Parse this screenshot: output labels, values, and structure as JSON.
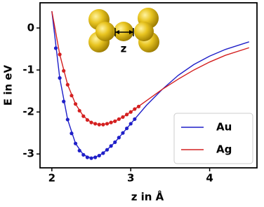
{
  "chart_data": {
    "type": "line",
    "xlabel": "z in Å",
    "ylabel": "E in eV",
    "inset_label": "z",
    "xlim": [
      1.85,
      4.6
    ],
    "ylim": [
      -3.33,
      0.6
    ],
    "xticks": [
      2,
      3,
      4
    ],
    "yticks": [
      0,
      -1,
      -2,
      -3
    ],
    "legend": "lower right",
    "series": [
      {
        "name": "Au",
        "color": "#1f1fc8",
        "x": [
          2.0,
          2.1,
          2.2,
          2.3,
          2.4,
          2.5,
          2.6,
          2.7,
          2.8,
          2.9,
          3.0,
          3.2,
          3.4,
          3.6,
          3.8,
          4.0,
          4.2,
          4.5
        ],
        "values": [
          0.4,
          -1.19,
          -2.18,
          -2.75,
          -3.02,
          -3.1,
          -3.04,
          -2.9,
          -2.72,
          -2.5,
          -2.28,
          -1.84,
          -1.46,
          -1.13,
          -0.87,
          -0.67,
          -0.51,
          -0.33
        ],
        "points_x": [
          2.05,
          2.1,
          2.15,
          2.2,
          2.25,
          2.3,
          2.35,
          2.4,
          2.45,
          2.5,
          2.55,
          2.6,
          2.65,
          2.7,
          2.75,
          2.8,
          2.85,
          2.9,
          2.95,
          3.0,
          3.05
        ],
        "points_values": [
          -0.48,
          -1.19,
          -1.75,
          -2.18,
          -2.51,
          -2.75,
          -2.92,
          -3.02,
          -3.08,
          -3.1,
          -3.08,
          -3.04,
          -2.98,
          -2.9,
          -2.81,
          -2.72,
          -2.61,
          -2.5,
          -2.39,
          -2.28,
          -2.17
        ]
      },
      {
        "name": "Ag",
        "color": "#d42020",
        "x": [
          2.0,
          2.1,
          2.2,
          2.3,
          2.4,
          2.5,
          2.6,
          2.7,
          2.8,
          2.9,
          3.0,
          3.2,
          3.4,
          3.6,
          3.8,
          4.0,
          4.2,
          4.5
        ],
        "values": [
          0.4,
          -0.63,
          -1.35,
          -1.81,
          -2.1,
          -2.25,
          -2.3,
          -2.28,
          -2.22,
          -2.12,
          -2.0,
          -1.73,
          -1.46,
          -1.22,
          -1.0,
          -0.81,
          -0.65,
          -0.47
        ],
        "points_x": [
          2.1,
          2.15,
          2.2,
          2.25,
          2.3,
          2.35,
          2.4,
          2.45,
          2.5,
          2.55,
          2.6,
          2.65,
          2.7,
          2.75,
          2.8,
          2.85,
          2.9,
          2.95,
          3.0,
          3.05,
          3.1
        ],
        "points_values": [
          -0.63,
          -1.02,
          -1.35,
          -1.61,
          -1.81,
          -1.97,
          -2.1,
          -2.19,
          -2.25,
          -2.28,
          -2.3,
          -2.3,
          -2.28,
          -2.25,
          -2.22,
          -2.17,
          -2.12,
          -2.06,
          -2.0,
          -1.93,
          -1.87
        ]
      }
    ]
  }
}
